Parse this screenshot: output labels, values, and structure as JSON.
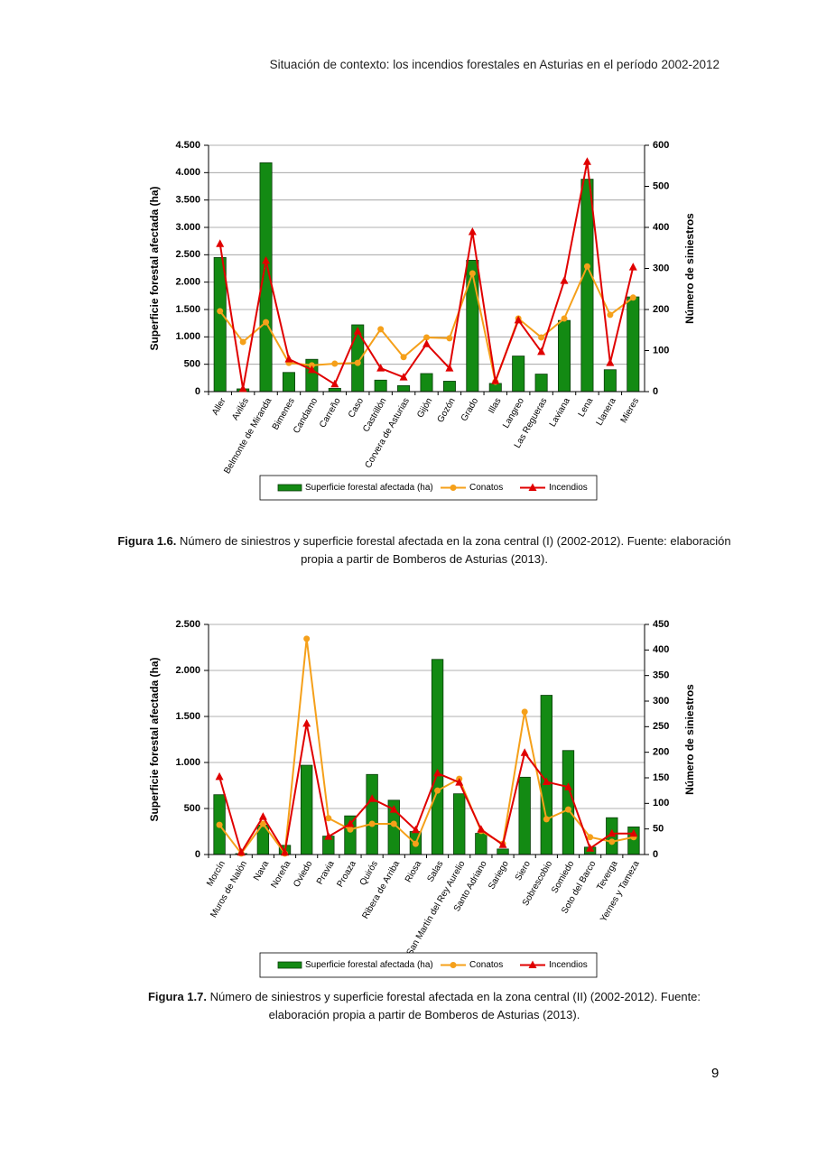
{
  "header": "Situación de contexto: los incendios forestales en Asturias en el período 2002-2012",
  "chart_data": [
    {
      "type": "bar",
      "ylabel": "Superficie forestal afectada (ha)",
      "y2label": "Número de siniestros",
      "categories": [
        "Aller",
        "Avilés",
        "Belmonte de Miranda",
        "Bimenes",
        "Candamo",
        "Carreño",
        "Caso",
        "Castrillón",
        "Corvera de Asturias",
        "Gijón",
        "Gozón",
        "Grado",
        "Illas",
        "Langreo",
        "Las Regueras",
        "Laviana",
        "Lena",
        "Llanera",
        "Mieres"
      ],
      "series": [
        {
          "name": "Superficie forestal afectada (ha)",
          "type": "bar",
          "color": "#138a13",
          "values": [
            2450,
            50,
            4180,
            350,
            590,
            60,
            1220,
            210,
            110,
            330,
            190,
            2400,
            150,
            650,
            320,
            1300,
            3880,
            400,
            1730
          ]
        },
        {
          "name": "Conatos",
          "type": "line",
          "marker": "circle",
          "axis": "y2",
          "color": "#f5a01a",
          "values": [
            196,
            121,
            169,
            70,
            64,
            68,
            70,
            152,
            84,
            132,
            130,
            288,
            24,
            178,
            132,
            178,
            305,
            187,
            229
          ]
        },
        {
          "name": "Incendios",
          "type": "line",
          "marker": "triangle",
          "axis": "y2",
          "color": "#e00000",
          "values": [
            360,
            7,
            319,
            79,
            53,
            18,
            147,
            57,
            35,
            116,
            57,
            389,
            26,
            174,
            97,
            270,
            560,
            70,
            303
          ]
        }
      ],
      "ylim": [
        0,
        4500
      ],
      "yticks": [
        0,
        500,
        {
          "value": 1000,
          "label": "1.000"
        },
        {
          "value": 1500,
          "label": "1.500"
        },
        {
          "value": 2000,
          "label": "2.000"
        },
        {
          "value": 2500,
          "label": "2.500"
        },
        {
          "value": 3000,
          "label": "3.000"
        },
        {
          "value": 3500,
          "label": "3.500"
        },
        {
          "value": 4000,
          "label": "4.000"
        },
        {
          "value": 4500,
          "label": "4.500"
        }
      ],
      "y2lim": [
        0,
        600
      ],
      "y2ticks": [
        0,
        100,
        200,
        300,
        400,
        500,
        600
      ],
      "grid": true,
      "legend": "bottom"
    },
    {
      "type": "bar",
      "ylabel": "Superficie forestal afectada (ha)",
      "y2label": "Número de siniestros",
      "categories": [
        "Morcín",
        "Muros de Nalón",
        "Nava",
        "Noreña",
        "Oviedo",
        "Pravia",
        "Proaza",
        "Quirós",
        "Ribera de Arriba",
        "Riosa",
        "Salas",
        "San Martín del Rey Aurelio",
        "Santo Adriano",
        "Sariego",
        "Siero",
        "Sobrescobio",
        "Somiedo",
        "Soto del Barco",
        "Teverga",
        "Yernes y Tameza"
      ],
      "series": [
        {
          "name": "Superficie forestal afectada (ha)",
          "type": "bar",
          "color": "#138a13",
          "values": [
            650,
            10,
            320,
            100,
            970,
            200,
            420,
            870,
            590,
            250,
            2120,
            660,
            230,
            60,
            840,
            1730,
            1130,
            80,
            400,
            300
          ]
        },
        {
          "name": "Conatos",
          "type": "line",
          "marker": "circle",
          "axis": "y2",
          "color": "#f5a01a",
          "values": [
            58,
            2,
            60,
            2,
            422,
            71,
            49,
            60,
            60,
            21,
            125,
            148,
            46,
            21,
            279,
            69,
            88,
            34,
            25,
            34
          ]
        },
        {
          "name": "Incendios",
          "type": "line",
          "marker": "triangle",
          "axis": "y2",
          "color": "#e00000",
          "values": [
            152,
            4,
            74,
            4,
            256,
            35,
            60,
            109,
            88,
            48,
            159,
            141,
            49,
            19,
            199,
            142,
            132,
            12,
            41,
            41
          ]
        }
      ],
      "ylim": [
        0,
        2500
      ],
      "yticks": [
        0,
        500,
        {
          "value": 1000,
          "label": "1.000"
        },
        {
          "value": 1500,
          "label": "1.500"
        },
        {
          "value": 2000,
          "label": "2.000"
        },
        {
          "value": 2500,
          "label": "2.500"
        }
      ],
      "y2lim": [
        0,
        450
      ],
      "y2ticks": [
        0,
        50,
        100,
        150,
        200,
        250,
        300,
        350,
        400,
        450
      ],
      "grid": true,
      "legend": "bottom"
    }
  ],
  "captions": [
    {
      "label": "Figura 1.6.",
      "text": "Número de siniestros y superficie forestal afectada en la zona central (I) (2002-2012). Fuente: elaboración propia a partir de Bomberos de Asturias (2013)."
    },
    {
      "label": "Figura 1.7.",
      "text": "Número de siniestros y superficie forestal afectada en la zona central (II) (2002-2012). Fuente: elaboración propia a partir de Bomberos de Asturias (2013)."
    }
  ],
  "page_number": 9
}
